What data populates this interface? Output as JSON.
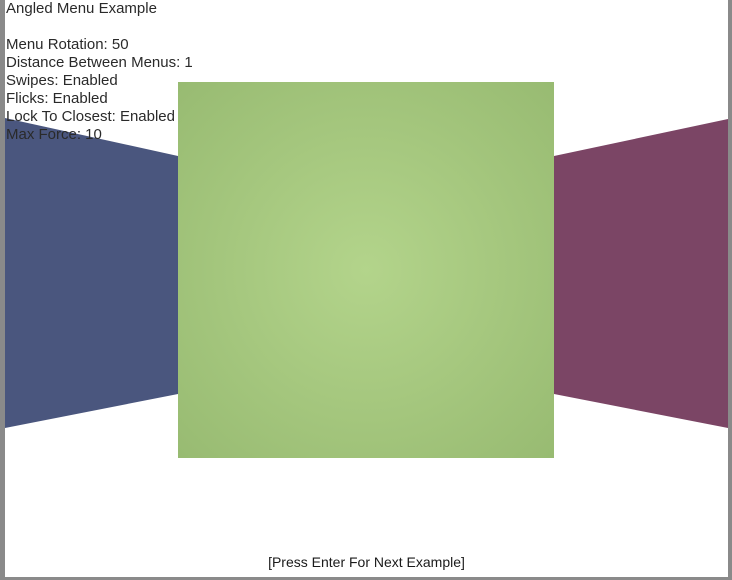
{
  "window": {
    "background": "#ffffff",
    "frame_color": "#8a8a8a"
  },
  "info": {
    "title": "Angled Menu Example",
    "lines": [
      "Menu Rotation: 50",
      "Distance Between Menus: 1",
      "Swipes: Enabled",
      "Flicks: Enabled",
      "Lock To Closest: Enabled",
      "Max Force: 10"
    ]
  },
  "menus": {
    "left": {
      "color": "#4a567e"
    },
    "center": {
      "color_light": "#b3d48b",
      "color_dark": "#98bb72"
    },
    "right": {
      "color": "#7b4565"
    }
  },
  "footer": {
    "prompt": "[Press Enter For Next Example]"
  }
}
